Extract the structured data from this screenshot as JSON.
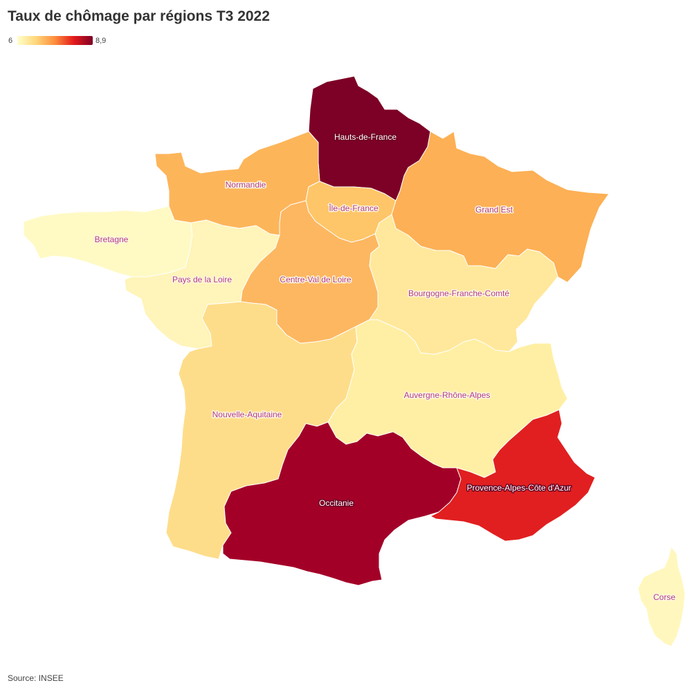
{
  "title": "Taux de chômage par régions T3 2022",
  "legend": {
    "min_label": "6",
    "max_label": "8,9",
    "colors": [
      "#ffffcc",
      "#ffd67a",
      "#fd8d3c",
      "#e31a1c",
      "#800026"
    ]
  },
  "source": "Source: INSEE",
  "regions": [
    {
      "name": "Hauts-de-France",
      "color": "#7d0026",
      "label_style": "dark"
    },
    {
      "name": "Normandie",
      "color": "#fdb55a",
      "label_style": "light"
    },
    {
      "name": "Île-de-France",
      "color": "#fec668",
      "label_style": "light"
    },
    {
      "name": "Grand Est",
      "color": "#fdb055",
      "label_style": "light"
    },
    {
      "name": "Bretagne",
      "color": "#fffac4",
      "label_style": "light"
    },
    {
      "name": "Pays de la Loire",
      "color": "#fff4b9",
      "label_style": "light"
    },
    {
      "name": "Centre-Val de Loire",
      "color": "#fdb761",
      "label_style": "light"
    },
    {
      "name": "Bourgogne-Franche-Comté",
      "color": "#ffe89b",
      "label_style": "light"
    },
    {
      "name": "Nouvelle-Aquitaine",
      "color": "#fedd8a",
      "label_style": "light"
    },
    {
      "name": "Auvergne-Rhône-Alpes",
      "color": "#ffefa4",
      "label_style": "light"
    },
    {
      "name": "Occitanie",
      "color": "#a30028",
      "label_style": "dark"
    },
    {
      "name": "Provence-Alpes-Côte d'Azur",
      "color": "#e11f20",
      "label_style": "dark"
    },
    {
      "name": "Corse",
      "color": "#fff7bd",
      "label_style": "light"
    }
  ]
}
